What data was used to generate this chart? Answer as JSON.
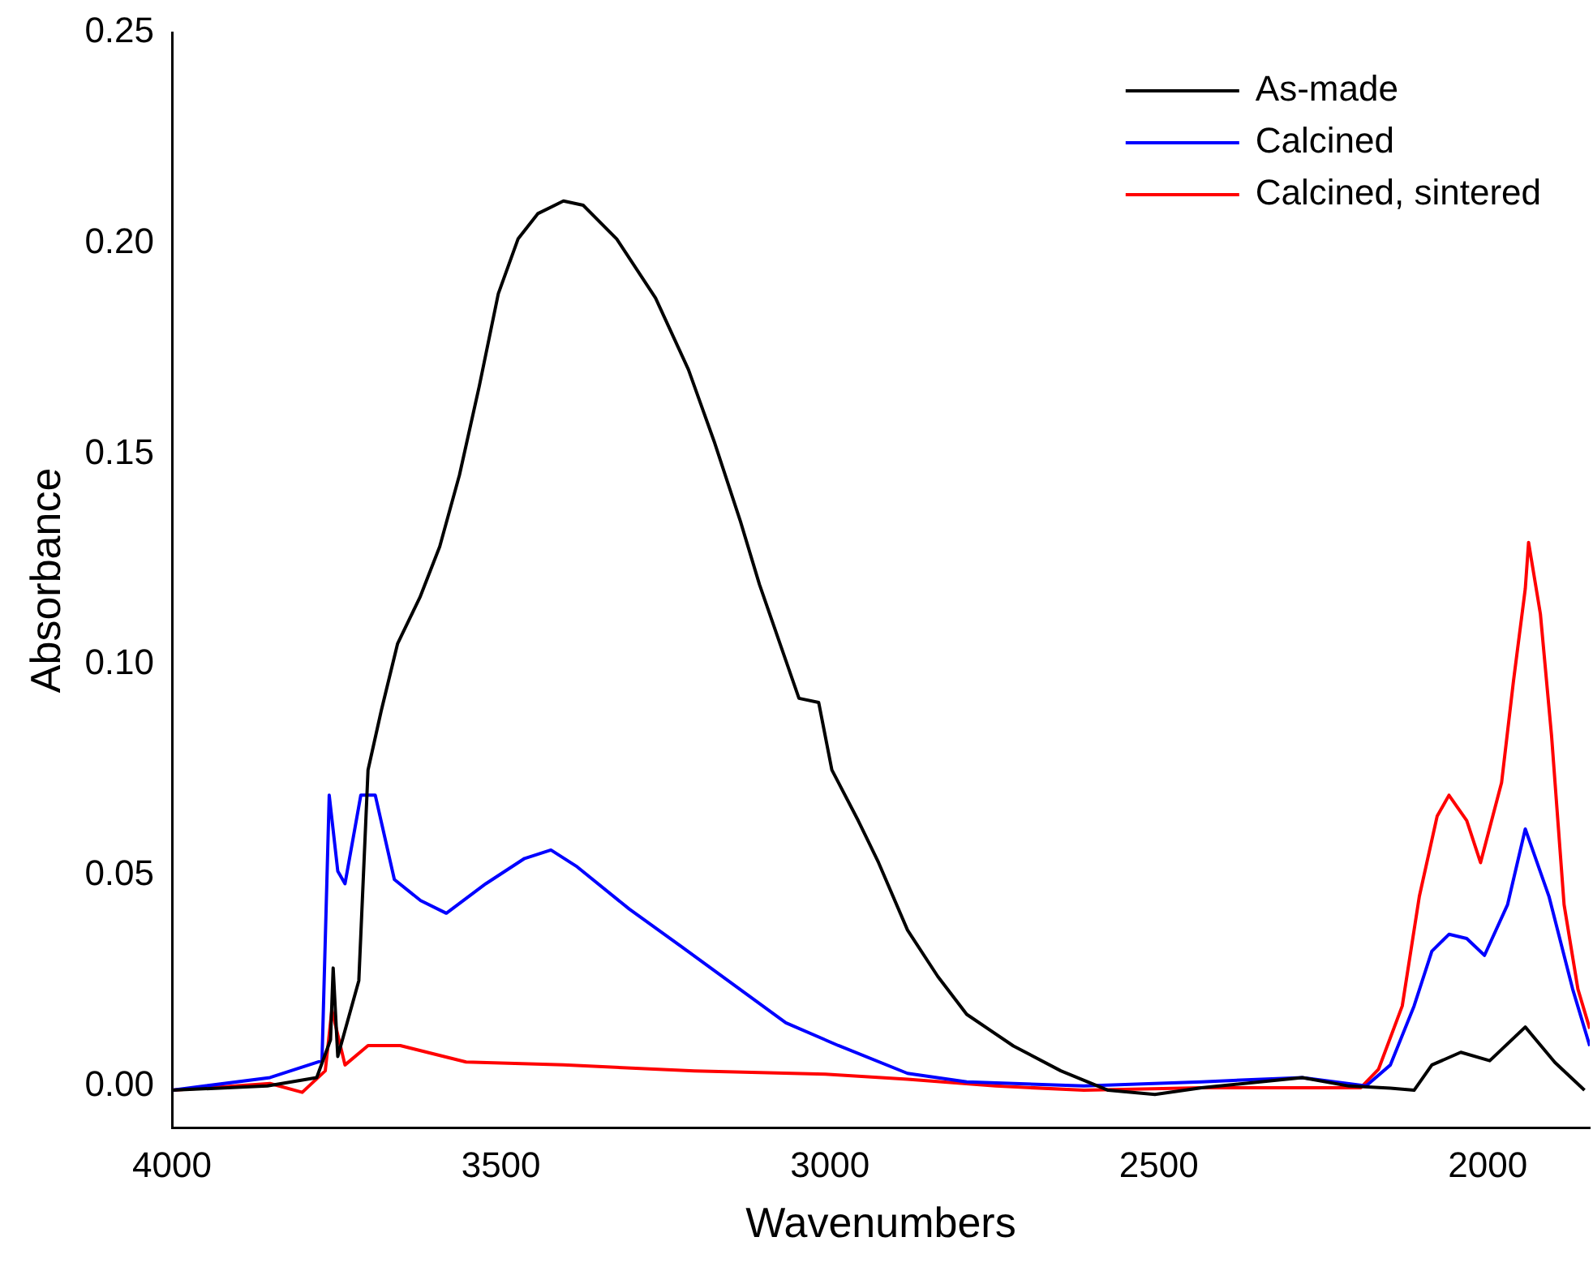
{
  "chart_data": {
    "type": "line",
    "xlabel": "Wavenumbers",
    "ylabel": "Absorbance",
    "xlim": [
      4000,
      1845
    ],
    "xticks": [
      4000,
      3500,
      3000,
      2500,
      2000
    ],
    "ylim": [
      -0.01,
      0.25
    ],
    "yticks": [
      {
        "value": 0,
        "label": "0.00"
      },
      {
        "value": 0.05,
        "label": "0.05"
      },
      {
        "value": 0.1,
        "label": "0.10"
      },
      {
        "value": 0.15,
        "label": "0.15"
      },
      {
        "value": 0.2,
        "label": "0.20"
      },
      {
        "value": 0.25,
        "label": "0.25"
      }
    ],
    "grid": false,
    "legend": "top right",
    "marker": "none",
    "line_style": "solid",
    "series": [
      {
        "name": "As-made",
        "color": "#000000",
        "x": [
          4000,
          3855,
          3780,
          3759,
          3755,
          3748,
          3716,
          3702,
          3682,
          3657,
          3623,
          3593,
          3563,
          3533,
          3504,
          3474,
          3444,
          3405,
          3375,
          3324,
          3265,
          3215,
          3176,
          3136,
          3107,
          3067,
          3047,
          3017,
          2997,
          2957,
          2926,
          2882,
          2836,
          2792,
          2721,
          2649,
          2577,
          2506,
          2435,
          2346,
          2282,
          2211,
          2148,
          2112,
          2085,
          2041,
          1997,
          1943,
          1898,
          1853
        ],
        "values": [
          -0.001,
          0.0,
          0.002,
          0.011,
          0.028,
          0.007,
          0.025,
          0.075,
          0.089,
          0.105,
          0.116,
          0.128,
          0.145,
          0.166,
          0.188,
          0.201,
          0.207,
          0.21,
          0.209,
          0.201,
          0.187,
          0.17,
          0.153,
          0.134,
          0.119,
          0.101,
          0.092,
          0.091,
          0.075,
          0.063,
          0.053,
          0.037,
          0.026,
          0.017,
          0.0095,
          0.0036,
          -0.001,
          -0.002,
          -0.0004,
          0.001,
          0.002,
          0.0,
          -0.0005,
          -0.001,
          0.005,
          0.008,
          0.006,
          0.014,
          0.0056,
          -0.001
        ]
      },
      {
        "name": "Calcined",
        "color": "#0000ff",
        "x": [
          4000,
          3851,
          3772,
          3761,
          3748,
          3737,
          3713,
          3691,
          3662,
          3622,
          3583,
          3523,
          3464,
          3424,
          3384,
          3305,
          3225,
          3146,
          3067,
          2987,
          2882,
          2792,
          2614,
          2435,
          2282,
          2185,
          2148,
          2112,
          2085,
          2059,
          2032,
          2005,
          1970,
          1943,
          1907,
          1871,
          1845
        ],
        "values": [
          -0.001,
          0.002,
          0.006,
          0.069,
          0.051,
          0.048,
          0.069,
          0.069,
          0.049,
          0.044,
          0.041,
          0.048,
          0.054,
          0.056,
          0.052,
          0.042,
          0.033,
          0.024,
          0.015,
          0.0096,
          0.003,
          0.001,
          0.0,
          0.001,
          0.002,
          0.0,
          0.005,
          0.019,
          0.032,
          0.036,
          0.035,
          0.031,
          0.043,
          0.061,
          0.045,
          0.023,
          0.0095
        ]
      },
      {
        "name": "Calcined, sintered",
        "color": "#ff0000",
        "x": [
          4000,
          3851,
          3802,
          3767,
          3757,
          3737,
          3702,
          3653,
          3553,
          3405,
          3206,
          3007,
          2882,
          2748,
          2614,
          2435,
          2282,
          2193,
          2166,
          2130,
          2104,
          2077,
          2059,
          2032,
          2011,
          1979,
          1961,
          1943,
          1938,
          1920,
          1903,
          1884,
          1863,
          1845
        ],
        "values": [
          -0.001,
          0.0006,
          -0.0015,
          0.0036,
          0.018,
          0.005,
          0.0096,
          0.0096,
          0.0057,
          0.005,
          0.0036,
          0.0028,
          0.0016,
          0.0,
          -0.001,
          -0.0004,
          null,
          -0.0004,
          0.004,
          0.019,
          0.045,
          0.064,
          0.069,
          0.063,
          0.053,
          0.072,
          0.096,
          0.118,
          0.129,
          0.112,
          0.083,
          0.043,
          0.023,
          0.0136
        ]
      }
    ]
  }
}
